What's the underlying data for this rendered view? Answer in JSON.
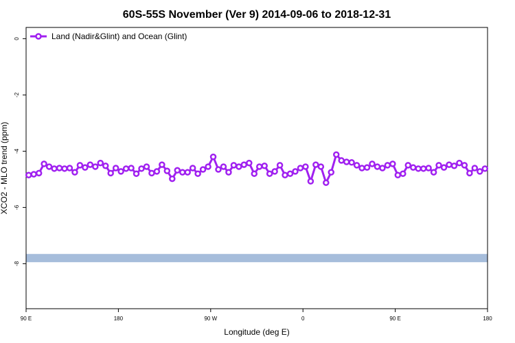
{
  "chart_data": {
    "type": "line",
    "title": "60S-55S November (Ver 9)   2014-09-06 to 2018-12-31",
    "xlabel": "Longitude (deg E)",
    "ylabel": "XCO2 - MLO trend (ppm)",
    "xlim": [
      90,
      540
    ],
    "ylim": [
      -9.6,
      0.4
    ],
    "xticks": [
      {
        "value": 90,
        "label": "90 E"
      },
      {
        "value": 180,
        "label": "180"
      },
      {
        "value": 270,
        "label": "90 W"
      },
      {
        "value": 360,
        "label": "0"
      },
      {
        "value": 450,
        "label": "90 E"
      },
      {
        "value": 540,
        "label": "180"
      }
    ],
    "yticks": [
      0,
      -2,
      -4,
      -6,
      -8
    ],
    "legend": "top-left",
    "reference_band": {
      "value": -7.8,
      "color": "#a6bddb"
    },
    "x": [
      92.5,
      97.5,
      102.5,
      107.5,
      112.5,
      117.5,
      122.5,
      127.5,
      132.5,
      137.5,
      142.5,
      147.5,
      152.5,
      157.5,
      162.5,
      167.5,
      172.5,
      177.5,
      182.5,
      187.5,
      192.5,
      197.5,
      202.5,
      207.5,
      212.5,
      217.5,
      222.5,
      227.5,
      232.5,
      237.5,
      242.5,
      247.5,
      252.5,
      257.5,
      262.5,
      267.5,
      272.5,
      277.5,
      282.5,
      287.5,
      292.5,
      297.5,
      302.5,
      307.5,
      312.5,
      317.5,
      322.5,
      327.5,
      332.5,
      337.5,
      342.5,
      347.5,
      352.5,
      357.5,
      362.5,
      367.5,
      372.5,
      377.5,
      382.5,
      387.5,
      392.5,
      397.5,
      402.5,
      407.5,
      412.5,
      417.5,
      422.5,
      427.5,
      432.5,
      437.5,
      442.5,
      447.5,
      452.5,
      457.5,
      462.5,
      467.5,
      472.5,
      477.5,
      482.5,
      487.5,
      492.5,
      497.5,
      502.5,
      507.5,
      512.5,
      517.5,
      522.5,
      527.5,
      532.5,
      537.5
    ],
    "series": [
      {
        "name": "Land (Nadir&Glint) and Ocean (Glint)",
        "color": "#a020f0",
        "values": [
          -4.85,
          -4.82,
          -4.78,
          -4.45,
          -4.55,
          -4.62,
          -4.6,
          -4.62,
          -4.6,
          -4.75,
          -4.5,
          -4.58,
          -4.48,
          -4.55,
          -4.42,
          -4.52,
          -4.78,
          -4.6,
          -4.72,
          -4.62,
          -4.6,
          -4.8,
          -4.62,
          -4.55,
          -4.78,
          -4.72,
          -4.48,
          -4.7,
          -4.98,
          -4.68,
          -4.75,
          -4.75,
          -4.6,
          -4.8,
          -4.65,
          -4.55,
          -4.2,
          -4.65,
          -4.55,
          -4.75,
          -4.5,
          -4.55,
          -4.48,
          -4.42,
          -4.8,
          -4.55,
          -4.52,
          -4.8,
          -4.72,
          -4.5,
          -4.85,
          -4.8,
          -4.72,
          -4.6,
          -4.55,
          -5.07,
          -4.48,
          -4.55,
          -5.12,
          -4.75,
          -4.12,
          -4.33,
          -4.38,
          -4.4,
          -4.5,
          -4.6,
          -4.58,
          -4.45,
          -4.55,
          -4.6,
          -4.5,
          -4.45,
          -4.85,
          -4.8,
          -4.5,
          -4.58,
          -4.62,
          -4.62,
          -4.6,
          -4.75,
          -4.5,
          -4.58,
          -4.48,
          -4.52,
          -4.42,
          -4.5,
          -4.78,
          -4.6,
          -4.72,
          -4.62
        ]
      }
    ]
  }
}
